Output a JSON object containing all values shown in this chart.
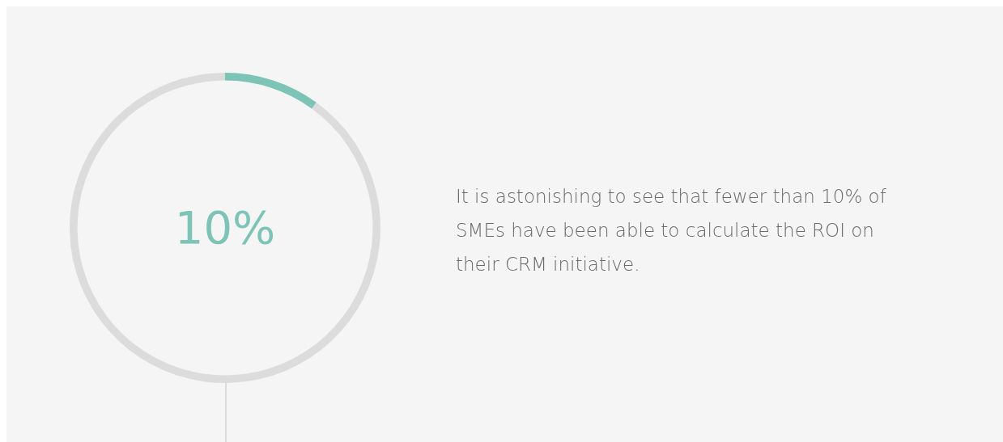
{
  "chart_data": {
    "type": "donut",
    "categories": [
      null,
      null
    ],
    "values": [
      10,
      90
    ],
    "colors": [
      "#7dc3b6",
      "#dcdcdc"
    ],
    "value_labels": [
      "10%",
      null
    ],
    "legend": false,
    "annotations": [
      "It is astonishing to see that fewer than 10% of SMEs have been able to calculate the ROI on their CRM initiative."
    ]
  }
}
